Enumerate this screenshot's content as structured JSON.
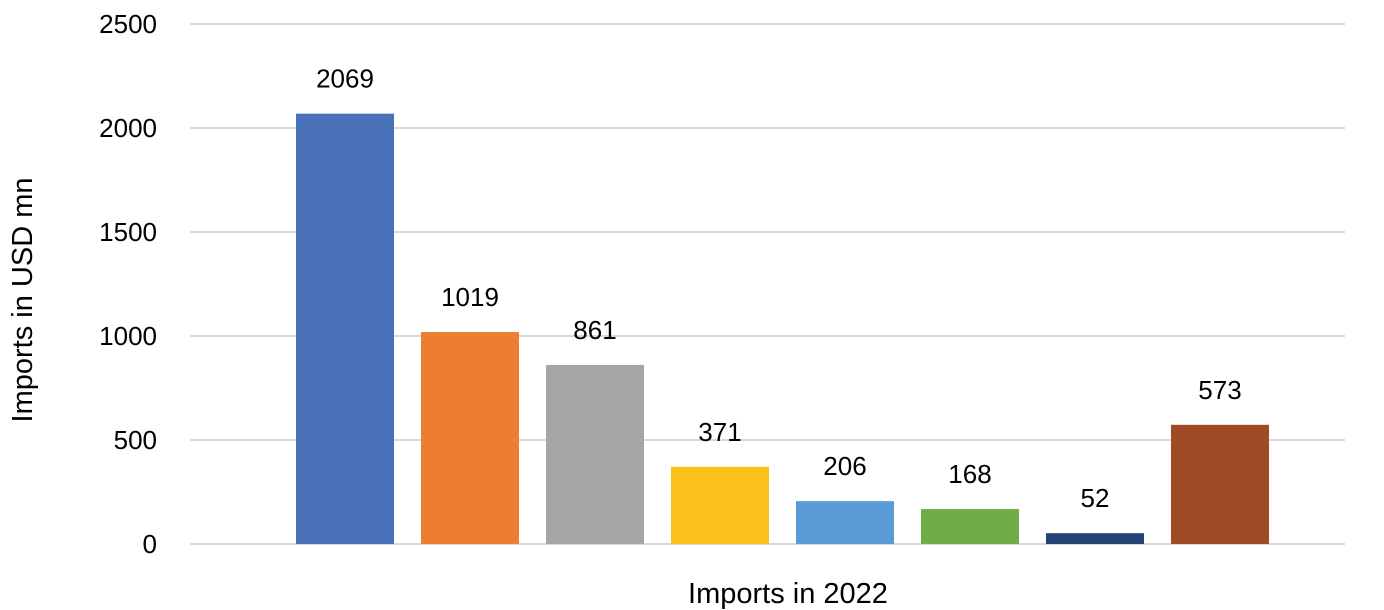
{
  "chart_data": {
    "type": "bar",
    "categories": [
      "",
      "",
      "",
      "",
      "",
      "",
      "",
      ""
    ],
    "values": [
      2069,
      1019,
      861,
      371,
      206,
      168,
      52,
      573
    ],
    "data_labels": [
      "2069",
      "1019",
      "861",
      "371",
      "206",
      "168",
      "52",
      "573"
    ],
    "colors": [
      "#4a72b8",
      "#ed7d31",
      "#a5a5a5",
      "#fbc01a",
      "#5b9bd5",
      "#70ad47",
      "#264478",
      "#9e4a24"
    ],
    "title": "",
    "xlabel": "Imports in 2022",
    "ylabel": "Imports in USD mn",
    "ylim": [
      0,
      2500
    ],
    "yticks": [
      0,
      500,
      1000,
      1500,
      2000,
      2500
    ],
    "ytick_labels": [
      "0",
      "500",
      "1000",
      "1500",
      "2000",
      "2500"
    ],
    "grid": true,
    "legend": "none"
  }
}
